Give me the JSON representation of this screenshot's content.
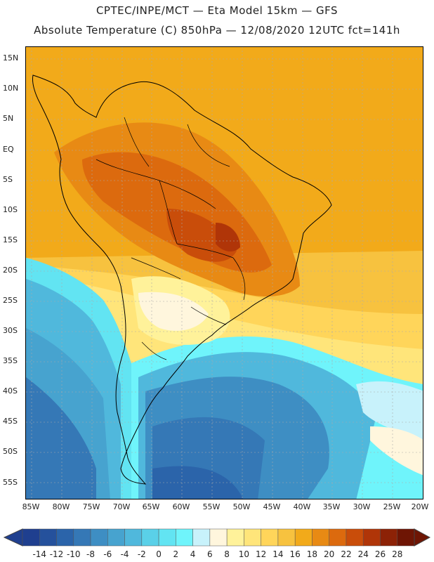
{
  "header": {
    "line1": "CPTEC/INPE/MCT —  Eta Model 15km — GFS",
    "line2": "Absolute Temperature (C) 850hPa — 12/08/2020 12UTC fct=141h"
  },
  "y_axis": [
    "15N",
    "10N",
    "5N",
    "EQ",
    "5S",
    "10S",
    "15S",
    "20S",
    "25S",
    "30S",
    "35S",
    "40S",
    "45S",
    "50S",
    "55S"
  ],
  "x_axis": [
    "85W",
    "80W",
    "75W",
    "70W",
    "65W",
    "60W",
    "55W",
    "50W",
    "45W",
    "40W",
    "35W",
    "30W",
    "25W",
    "20W"
  ],
  "colorbar": {
    "labels": [
      "-14",
      "-12",
      "-10",
      "-8",
      "-6",
      "-4",
      "-2",
      "0",
      "2",
      "4",
      "6",
      "8",
      "10",
      "12",
      "14",
      "16",
      "18",
      "20",
      "22",
      "24",
      "26",
      "28"
    ],
    "colors": [
      "#1f3f8f",
      "#25519c",
      "#2b64aa",
      "#3578b6",
      "#3e8ec3",
      "#47a3cf",
      "#50b8dc",
      "#5ad0e8",
      "#62e4f2",
      "#6ff4fb",
      "#c8f2fb",
      "#fff6dd",
      "#fff29a",
      "#ffe57a",
      "#ffd55a",
      "#f7c23f",
      "#f2aa1a",
      "#e88a14",
      "#dc6a0e",
      "#c94d0a",
      "#b03508",
      "#8c2206",
      "#6e1504"
    ]
  },
  "legend_colors": {
    "deep_blue": "#2b64aa",
    "mid_blue": "#3e8ec3",
    "cyan": "#5ad0e8",
    "light_cyan": "#c8f2fb",
    "pale": "#fff6dd",
    "yellow": "#ffe57a",
    "orange": "#f2aa1a",
    "dark_orange": "#e88a14",
    "red_orange": "#dc6a0e"
  }
}
